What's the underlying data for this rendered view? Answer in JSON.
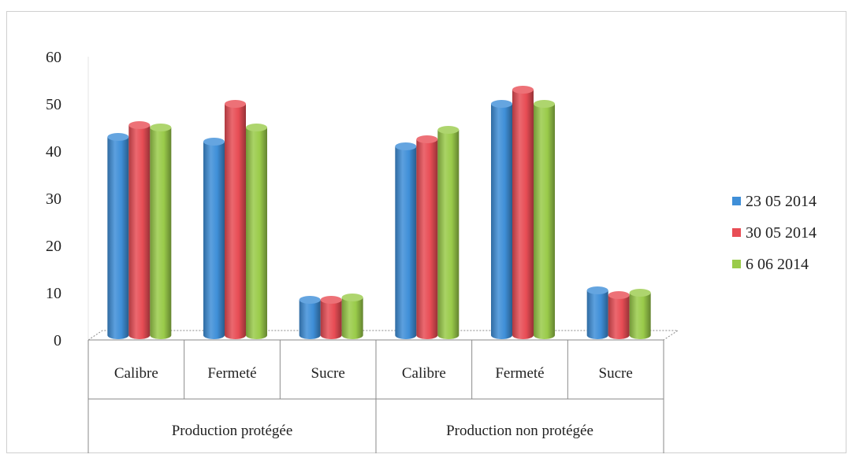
{
  "chart_data": {
    "type": "bar",
    "style": "3d-cylinder",
    "groups": [
      {
        "label": "Production protégée",
        "categories": [
          "Calibre",
          "Fermeté",
          "Sucre"
        ]
      },
      {
        "label": "Production non protégée",
        "categories": [
          "Calibre",
          "Fermeté",
          "Sucre"
        ]
      }
    ],
    "series": [
      {
        "name": "23 05 2014",
        "color": "#3f8fd8",
        "values": [
          43,
          42,
          8.5,
          41,
          50,
          10.5
        ]
      },
      {
        "name": "30 05 2014",
        "color": "#e84d55",
        "values": [
          45.5,
          50,
          8.5,
          42.5,
          53,
          9.5
        ]
      },
      {
        "name": "6 06 2014",
        "color": "#9acb4a",
        "values": [
          45,
          45,
          9,
          44.5,
          50,
          10
        ]
      }
    ],
    "y_ticks": [
      "0",
      "10",
      "20",
      "30",
      "40",
      "50",
      "60"
    ],
    "ylim": [
      0,
      60
    ],
    "legend_position": "right",
    "grid": false
  }
}
